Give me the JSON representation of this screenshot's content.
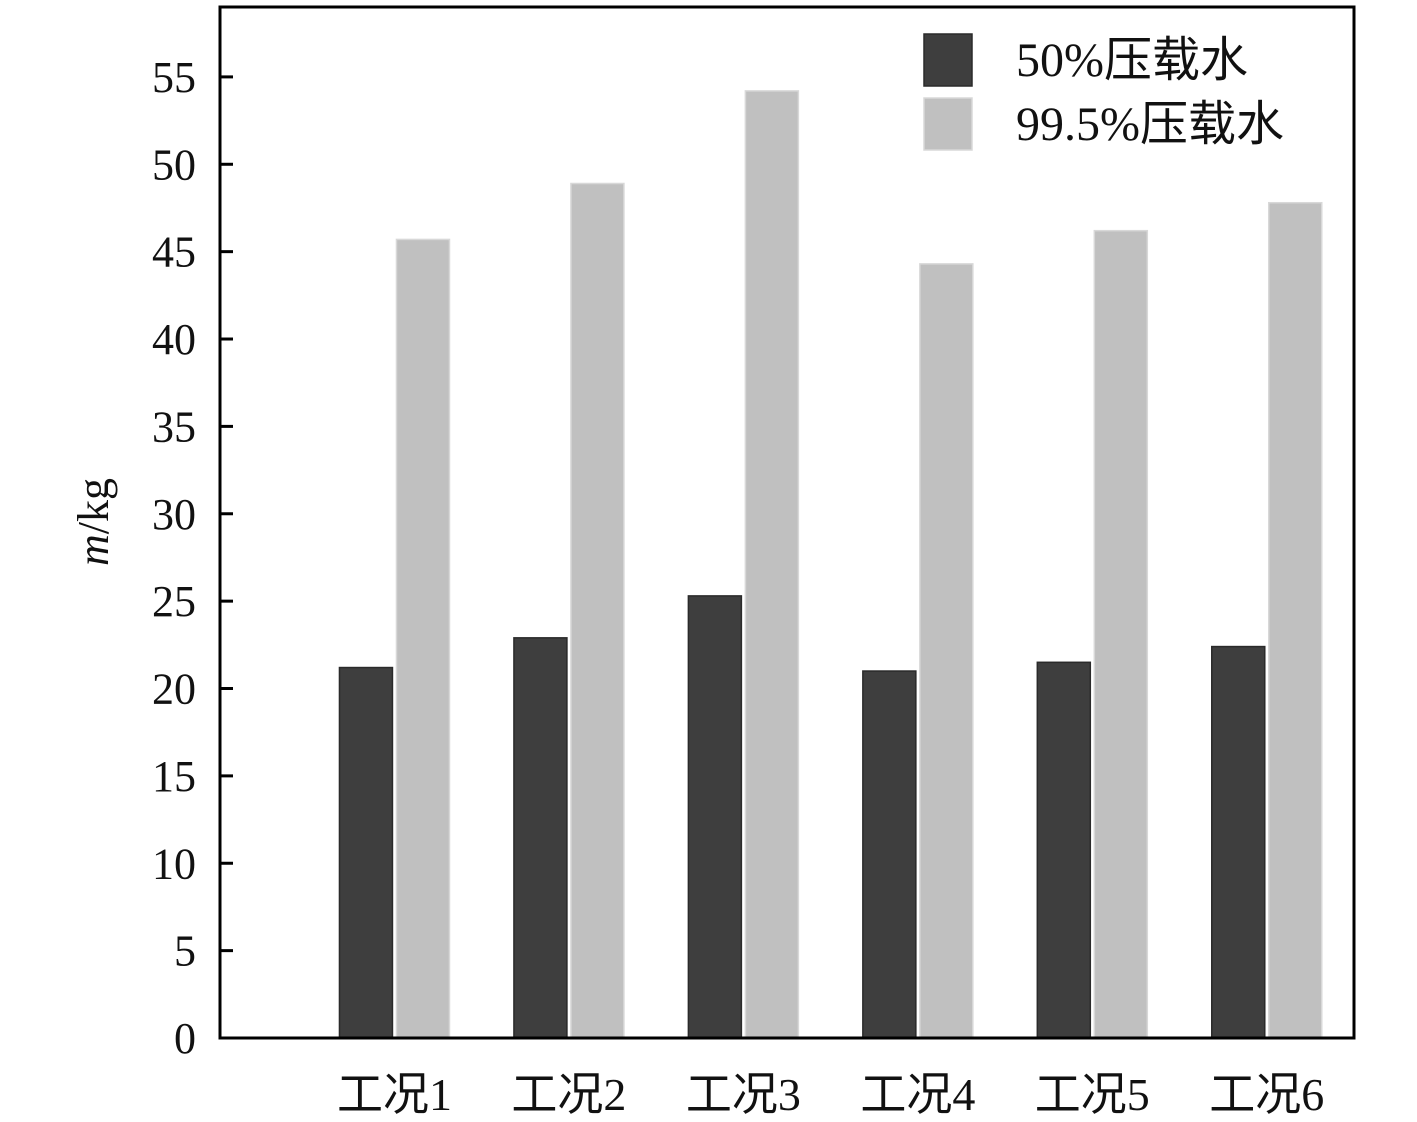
{
  "chart_data": {
    "type": "bar",
    "categories": [
      "工况1",
      "工况2",
      "工况3",
      "工况4",
      "工况5",
      "工况6"
    ],
    "series": [
      {
        "name": "50%压载水",
        "values": [
          21.2,
          22.9,
          25.3,
          21.0,
          21.5,
          22.4
        ],
        "color": "#3e3e3e"
      },
      {
        "name": "99.5%压载水",
        "values": [
          45.7,
          48.9,
          54.2,
          44.3,
          46.2,
          47.8
        ],
        "color": "#c0c0c0"
      }
    ],
    "ylabel_var": "m",
    "ylabel_unit": "/kg",
    "ylim": [
      0,
      59
    ],
    "yticks": [
      0,
      5,
      10,
      15,
      20,
      25,
      30,
      35,
      40,
      45,
      50,
      55
    ],
    "grid": false,
    "legend_position": "top-right"
  }
}
